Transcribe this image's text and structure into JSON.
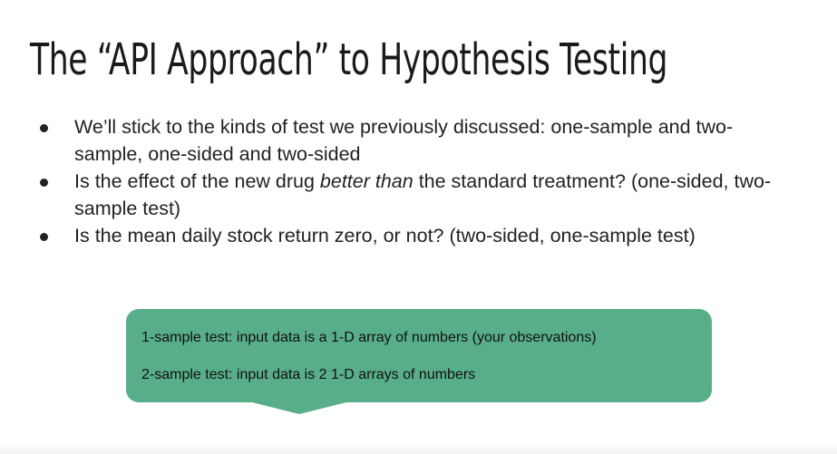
{
  "slide": {
    "title": "The “API Approach” to Hypothesis Testing",
    "bullets": [
      {
        "text_before": "We’ll stick to the kinds of test we previously discussed: one-sample and two-sample, one-sided and two-sided",
        "emphasis": "",
        "text_after": ""
      },
      {
        "text_before": "Is the effect of the new drug ",
        "emphasis": "better than",
        "text_after": " the standard treatment? (one-sided, two-sample test)"
      },
      {
        "text_before": "Is the mean daily stock return zero, or not? (two-sided, one-sample test)",
        "emphasis": "",
        "text_after": ""
      }
    ],
    "callout": {
      "line1": "1-sample test: input data is a 1-D array of numbers (your observations)",
      "line2": "2-sample test: input data is 2 1-D arrays of numbers",
      "color": "#57ae88"
    }
  }
}
